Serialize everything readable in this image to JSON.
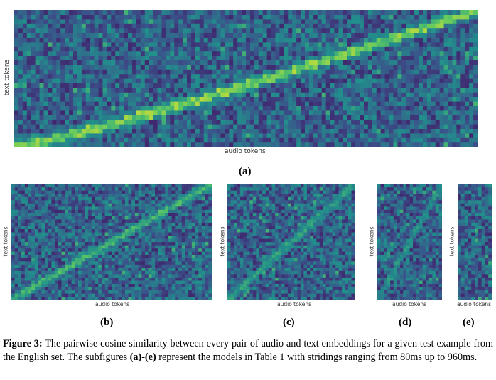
{
  "figure": {
    "subfigures": [
      {
        "id": "a",
        "label": "(a)",
        "xlabel": "audio tokens",
        "ylabel": "text tokens",
        "rows": 30,
        "cols": 110,
        "diagonal": "staircase",
        "brightness": 0.85
      },
      {
        "id": "b",
        "label": "(b)",
        "xlabel": "audio tokens",
        "ylabel": "text tokens",
        "rows": 36,
        "cols": 60,
        "diagonal": "linear",
        "brightness": 0.7
      },
      {
        "id": "c",
        "label": "(c)",
        "xlabel": "audio tokens",
        "ylabel": "text tokens",
        "rows": 36,
        "cols": 40,
        "diagonal": "linear",
        "brightness": 0.6
      },
      {
        "id": "d",
        "label": "(d)",
        "xlabel": "audio tokens",
        "ylabel": "text tokens",
        "rows": 36,
        "cols": 20,
        "diagonal": "linear",
        "brightness": 0.55
      },
      {
        "id": "e",
        "label": "(e)",
        "xlabel": "audio tokens",
        "ylabel": "text tokens",
        "rows": 36,
        "cols": 10,
        "diagonal": "linear",
        "brightness": 0.4
      }
    ],
    "caption": {
      "prefix": "Figure 3:",
      "part1": " The pairwise cosine similarity between every pair of audio and text embeddings for a given test example from the English set. The subfigures ",
      "range": "(a)",
      "dash": "-",
      "range_end": "(e)",
      "part2": " represent the models in Table 1 with stridings ranging from 80ms up to 960ms."
    },
    "colormap": [
      "#440154",
      "#3b528b",
      "#21918c",
      "#5ec962",
      "#fde725"
    ]
  }
}
